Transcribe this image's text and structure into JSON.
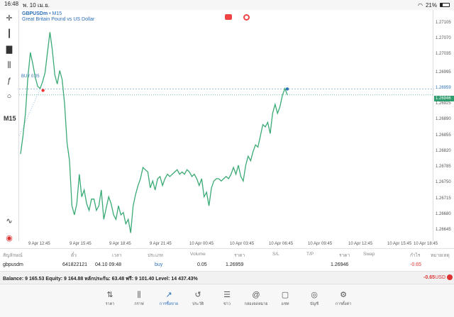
{
  "status": {
    "time": "16:48",
    "date": "พ. 10 เม.ย.",
    "battery": "21%",
    "battery_level": 0.21
  },
  "toolbar": {
    "timeframe": "M15"
  },
  "chart_header": {
    "symbol": "GBPUSDm",
    "separator": " • ",
    "timeframe": "M15",
    "description": "Great Britain Pound vs US Dollar"
  },
  "chart_data": {
    "type": "line",
    "series_color": "#3aaa74",
    "y_ticks": [
      "1.27105",
      "1.27070",
      "1.27035",
      "1.26995",
      "1.26960",
      "1.26925",
      "1.26890",
      "1.26855",
      "1.26820",
      "1.26785",
      "1.26750",
      "1.26715",
      "1.26680",
      "1.26645"
    ],
    "x_ticks": [
      "9 Apr 12:45",
      "9 Apr 15:45",
      "9 Apr 18:45",
      "9 Apr 21:45",
      "10 Apr 00:45",
      "10 Apr 03:45",
      "10 Apr 06:45",
      "10 Apr 09:45",
      "10 Apr 12:45",
      "10 Apr 15:45",
      "10 Apr 18:45"
    ],
    "ylim": [
      1.26628,
      1.27128
    ],
    "order_line": {
      "label": "BUY 0.05",
      "price": 1.26959
    },
    "bid_line": {
      "label": "1.26946",
      "price": 1.26946
    },
    "close_price_label": "1.26959",
    "values": [
      1.26815,
      1.26855,
      1.26905,
      1.26985,
      1.2704,
      1.27015,
      1.26985,
      1.26965,
      1.2696,
      1.26975,
      1.26995,
      1.2704,
      1.27085,
      1.27045,
      1.2699,
      1.2697,
      1.27,
      1.2698,
      1.26925,
      1.2684,
      1.268,
      1.267,
      1.2668,
      1.26705,
      1.2677,
      1.2672,
      1.26735,
      1.26705,
      1.2669,
      1.26715,
      1.26715,
      1.2669,
      1.267,
      1.26735,
      1.2667,
      1.26695,
      1.2672,
      1.26705,
      1.2668,
      1.2667,
      1.267,
      1.2668,
      1.26685,
      1.2666,
      1.2667,
      1.2664,
      1.267,
      1.26725,
      1.26745,
      1.2676,
      1.26785,
      1.2678,
      1.26775,
      1.2674,
      1.26755,
      1.26735,
      1.2676,
      1.26765,
      1.26745,
      1.2676,
      1.2677,
      1.26765,
      1.2677,
      1.26775,
      1.2678,
      1.2677,
      1.26775,
      1.2677,
      1.2678,
      1.26775,
      1.26765,
      1.2677,
      1.2676,
      1.26745,
      1.2676,
      1.2672,
      1.2673,
      1.267,
      1.2674,
      1.26755,
      1.2676,
      1.2676,
      1.26755,
      1.2676,
      1.26765,
      1.2676,
      1.2677,
      1.26785,
      1.2677,
      1.2679,
      1.26765,
      1.26755,
      1.2679,
      1.2681,
      1.268,
      1.2682,
      1.26835,
      1.2683,
      1.26855,
      1.2688,
      1.26875,
      1.26885,
      1.2686,
      1.26905,
      1.26925,
      1.26905,
      1.2692,
      1.26945,
      1.2696,
      1.26946
    ]
  },
  "positions_table": {
    "headers": [
      "สัญลักษณ์",
      "ตั๋ว",
      "เวลา",
      "ประเภท",
      "Volume",
      "ราคา",
      "S/L",
      "T/P",
      "ราคา",
      "Swap",
      "กำไร",
      "หมายเหตุ"
    ],
    "rows": [
      {
        "symbol": "gbpusdm",
        "ticket": "641822121",
        "time": "04.10 09:48",
        "type": "buy",
        "volume": "0.05",
        "price": "1.26959",
        "sl": "",
        "tp": "",
        "current": "1.26946",
        "swap": "",
        "profit": "-0.65",
        "comment": ""
      }
    ]
  },
  "balance_bar": {
    "text": "Balance: 9 165.53 Equity: 9 164.88 หลักประกัน: 63.48 ฟรี: 9 101.40 Level: 14 437.43%",
    "profit": "-0.65",
    "currency": "USD"
  },
  "nav": {
    "items": [
      {
        "label": "ราคา",
        "icon": "quotes-icon"
      },
      {
        "label": "กราฟ",
        "icon": "chart-icon"
      },
      {
        "label": "การซื้อขาย",
        "icon": "trade-icon",
        "active": true
      },
      {
        "label": "ประวัติ",
        "icon": "history-icon"
      },
      {
        "label": "ข่าว",
        "icon": "news-icon"
      },
      {
        "label": "กล่องจดหมาย",
        "icon": "mailbox-icon"
      },
      {
        "label": "แชท",
        "icon": "chat-icon"
      },
      {
        "label": "บัญชี",
        "icon": "account-icon"
      },
      {
        "label": "การตั้งค่า",
        "icon": "settings-icon"
      }
    ]
  }
}
